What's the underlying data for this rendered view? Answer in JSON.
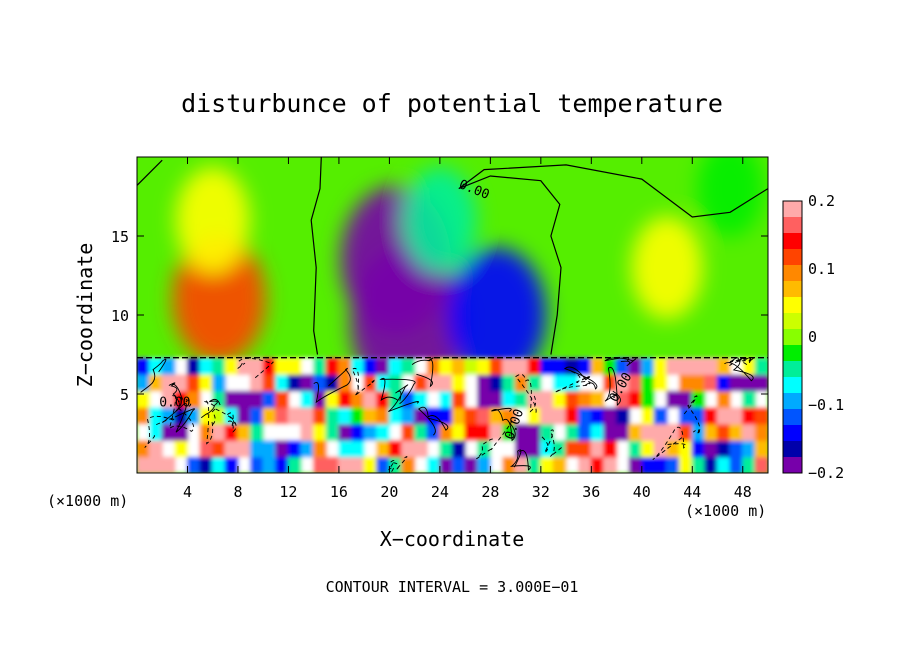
{
  "chart_data": {
    "type": "heatmap",
    "title": "disturbunce of potential temperature",
    "xlabel": "X−coordinate",
    "ylabel": "Z−coordinate",
    "x_unit": "(×1000 m)",
    "x_unit_right": "(×1000 m)",
    "footer": "CONTOUR INTERVAL = 3.000E−01",
    "xlim": [
      0,
      50
    ],
    "ylim": [
      0,
      20
    ],
    "x_ticks": [
      4,
      8,
      12,
      16,
      20,
      24,
      28,
      32,
      36,
      40,
      44,
      48
    ],
    "x_tick_labels": [
      "4",
      "8",
      "12",
      "16",
      "20",
      "24",
      "28",
      "32",
      "36",
      "40",
      "44",
      "48"
    ],
    "y_ticks": [
      5,
      10,
      15
    ],
    "y_tick_labels": [
      "5",
      "10",
      "15"
    ],
    "colorbar": {
      "range": [
        -0.2,
        0.2
      ],
      "ticks": [
        0.2,
        0.1,
        0,
        -0.1,
        -0.2
      ],
      "tick_labels": [
        "0.2",
        "0.1",
        "0",
        "−0.1",
        "−0.2"
      ],
      "colors": [
        "#ffaaaa",
        "#ff6060",
        "#ff0000",
        "#ff4400",
        "#ff8800",
        "#ffbb00",
        "#ffff00",
        "#ccff00",
        "#88ff00",
        "#00ee00",
        "#00ee99",
        "#00ffff",
        "#00aaff",
        "#0055ff",
        "#0000ff",
        "#0000aa",
        "#7700aa"
      ]
    },
    "contour_labels": [
      {
        "text": "0.00",
        "x": 26.6,
        "z": 17.7,
        "angle": 22
      },
      {
        "text": "0.00",
        "x": 3.0,
        "z": 4.2,
        "angle": 0
      },
      {
        "text": "0.00",
        "x": 30.2,
        "z": 3.0,
        "angle": -70
      },
      {
        "text": "0.00",
        "x": 38.6,
        "z": 5.3,
        "angle": -60
      }
    ],
    "upper_layer_features": [
      {
        "x": 6.5,
        "z": 11,
        "value": 0.12
      },
      {
        "x": 6.0,
        "z": 16,
        "value": 0.05
      },
      {
        "x": 20.5,
        "z": 13.5,
        "value": -0.18
      },
      {
        "x": 21.5,
        "z": 9.5,
        "value": -0.2
      },
      {
        "x": 28.5,
        "z": 10,
        "value": -0.14
      },
      {
        "x": 42,
        "z": 13,
        "value": 0.04
      },
      {
        "x": 47,
        "z": 18,
        "value": -0.02
      },
      {
        "x": 24,
        "z": 16,
        "value": -0.05
      }
    ],
    "zero_contour_upper": [
      {
        "x": 0,
        "z": 18.2
      },
      {
        "x": 2,
        "z": 19.8
      }
    ],
    "zero_contour_mid": [
      {
        "x": 14.3,
        "z": 7.5
      },
      {
        "x": 14.0,
        "z": 9
      },
      {
        "x": 14.2,
        "z": 13
      },
      {
        "x": 13.8,
        "z": 16
      },
      {
        "x": 14.5,
        "z": 18
      },
      {
        "x": 14.6,
        "z": 20
      }
    ],
    "zero_contour_right": [
      {
        "x": 32.8,
        "z": 7.5
      },
      {
        "x": 33.3,
        "z": 10
      },
      {
        "x": 33.6,
        "z": 13
      },
      {
        "x": 32.8,
        "z": 15
      },
      {
        "x": 33.5,
        "z": 17
      },
      {
        "x": 32.0,
        "z": 18.5
      },
      {
        "x": 28.0,
        "z": 18.8
      },
      {
        "x": 25.5,
        "z": 18.0
      },
      {
        "x": 27.5,
        "z": 19.2
      },
      {
        "x": 34,
        "z": 19.5
      },
      {
        "x": 40,
        "z": 18.6
      },
      {
        "x": 44,
        "z": 16.2
      },
      {
        "x": 47,
        "z": 16.5
      },
      {
        "x": 50,
        "z": 18.0
      }
    ],
    "boundary_z": 7.3
  }
}
